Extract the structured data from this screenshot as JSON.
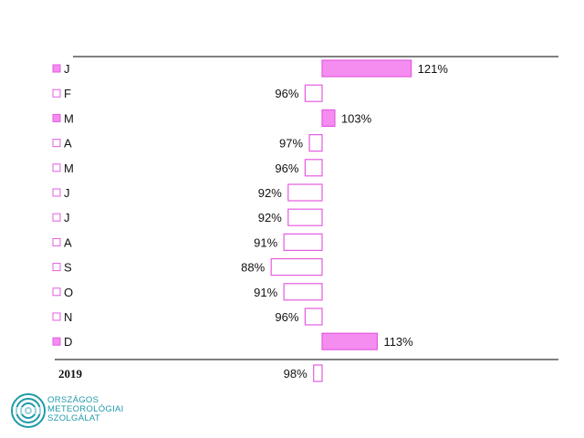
{
  "chart_data": {
    "type": "bar",
    "orientation": "horizontal",
    "baseline": 100,
    "categories": [
      "J",
      "F",
      "M",
      "A",
      "M",
      "J",
      "J",
      "A",
      "S",
      "O",
      "N",
      "D"
    ],
    "values": [
      121,
      96,
      103,
      97,
      96,
      92,
      92,
      91,
      88,
      91,
      96,
      113
    ],
    "value_labels": [
      "121%",
      "96%",
      "103%",
      "97%",
      "96%",
      "92%",
      "92%",
      "91%",
      "88%",
      "91%",
      "96%",
      "113%"
    ],
    "summary": {
      "label": "2019",
      "value": 98,
      "value_label": "98%"
    },
    "colors": {
      "above": "#f58cf0",
      "below_fill": "#ffffff",
      "stroke": "#e45ce0"
    }
  },
  "logo": {
    "lines": [
      "ORSZÁGOS",
      "METEOROLÓGIAI",
      "SZOLGÁLAT"
    ],
    "color": "#1f9aa8"
  }
}
